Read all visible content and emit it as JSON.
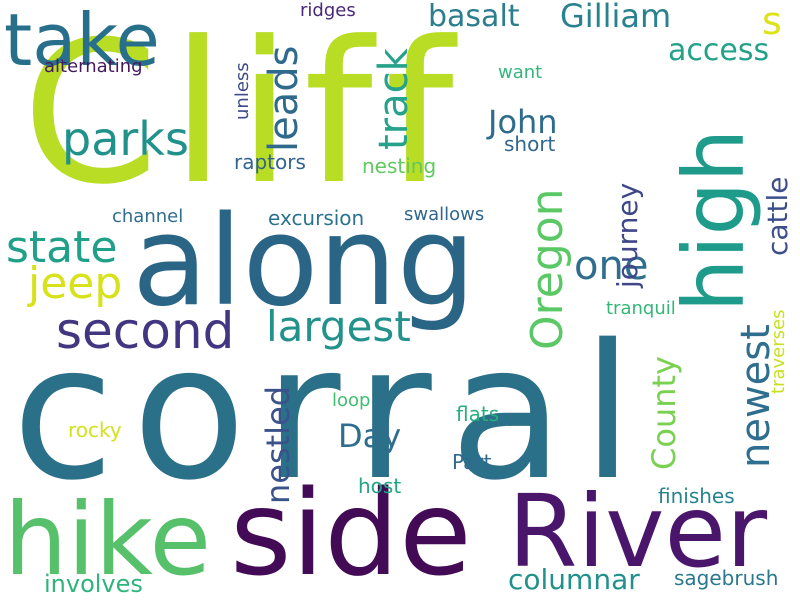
{
  "words": [
    {
      "text": "corral",
      "color": "#2b7089"
    },
    {
      "text": "Cliff",
      "color": "#b8dd24"
    },
    {
      "text": "along",
      "color": "#2b6586"
    },
    {
      "text": "side",
      "color": "#430b55"
    },
    {
      "text": "River",
      "color": "#4a166b"
    },
    {
      "text": "hike",
      "color": "#56c16a"
    },
    {
      "text": "high",
      "color": "#1e9b8a"
    },
    {
      "text": "take",
      "color": "#276f8a"
    },
    {
      "text": "second",
      "color": "#433680"
    },
    {
      "text": "largest",
      "color": "#24928c"
    },
    {
      "text": "parks",
      "color": "#21918c"
    },
    {
      "text": "state",
      "color": "#21a089"
    },
    {
      "text": "leads",
      "color": "#2f6a8d"
    },
    {
      "text": "track",
      "color": "#26a28a"
    },
    {
      "text": "Oregon",
      "color": "#5ac864"
    },
    {
      "text": "jeep",
      "color": "#d7e21a"
    },
    {
      "text": "one",
      "color": "#2f6e8e"
    },
    {
      "text": "newest",
      "color": "#2f6e8e"
    },
    {
      "text": "nestled",
      "color": "#3a5289"
    },
    {
      "text": "County",
      "color": "#7ad151"
    },
    {
      "text": "basalt",
      "color": "#2c7e8e"
    },
    {
      "text": "Gilliam",
      "color": "#28818e"
    },
    {
      "text": "access",
      "color": "#23a288"
    },
    {
      "text": "s",
      "color": "#dde318"
    },
    {
      "text": "John",
      "color": "#2e6c8e"
    },
    {
      "text": "Day",
      "color": "#2f6d8e"
    },
    {
      "text": "journey",
      "color": "#3f4788"
    },
    {
      "text": "cattle",
      "color": "#3c4f8a"
    },
    {
      "text": "columnar",
      "color": "#22918c"
    },
    {
      "text": "involves",
      "color": "#2fb47c"
    },
    {
      "text": "alternating",
      "color": "#471a5e"
    },
    {
      "text": "ridges",
      "color": "#482979"
    },
    {
      "text": "unless",
      "color": "#3e4a89"
    },
    {
      "text": "raptors",
      "color": "#32648e"
    },
    {
      "text": "nesting",
      "color": "#60ca60"
    },
    {
      "text": "want",
      "color": "#34b679"
    },
    {
      "text": "short",
      "color": "#31668e"
    },
    {
      "text": "channel",
      "color": "#2f6d8e"
    },
    {
      "text": "excursion",
      "color": "#2c728e"
    },
    {
      "text": "swallows",
      "color": "#31668e"
    },
    {
      "text": "tranquil",
      "color": "#34b679"
    },
    {
      "text": "traverses",
      "color": "#c8e020"
    },
    {
      "text": "loop",
      "color": "#42be71"
    },
    {
      "text": "flats",
      "color": "#29af7f"
    },
    {
      "text": "rocky",
      "color": "#d2e21b"
    },
    {
      "text": "Part",
      "color": "#306a8e"
    },
    {
      "text": "host",
      "color": "#21a685"
    },
    {
      "text": "finishes",
      "color": "#25848e"
    },
    {
      "text": "sagebrush",
      "color": "#2a778e"
    }
  ]
}
